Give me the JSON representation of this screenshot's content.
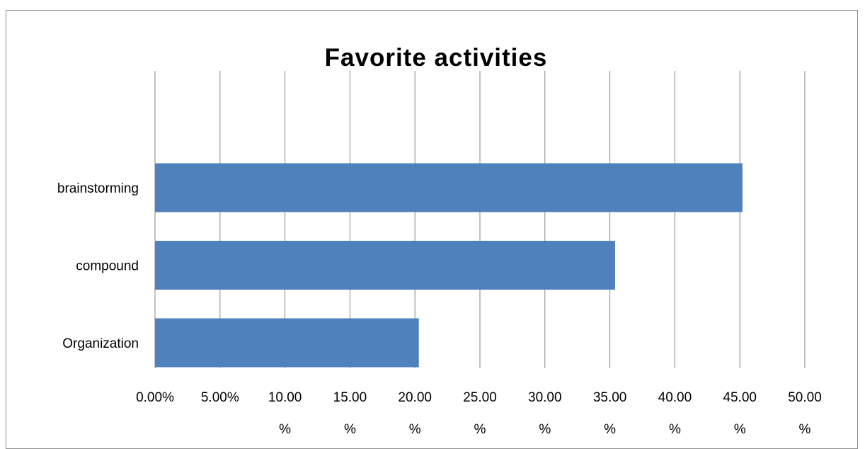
{
  "chart_data": {
    "type": "bar",
    "orientation": "horizontal",
    "title": "Favorite activities",
    "categories": [
      "brainstorming",
      "compound",
      "Organization"
    ],
    "values": [
      45.2,
      35.4,
      20.3
    ],
    "xlabel": "",
    "ylabel": "",
    "xlim": [
      0,
      50
    ],
    "x_ticks": [
      "0.00%",
      "5.00%",
      "10.00 %",
      "15.00 %",
      "20.00 %",
      "25.00 %",
      "30.00 %",
      "35.00 %",
      "40.00 %",
      "45.00 %",
      "50.00 %"
    ],
    "grid": true,
    "legend": "none",
    "bar_color": "#4f81bd",
    "gridline_color": "#868686"
  }
}
